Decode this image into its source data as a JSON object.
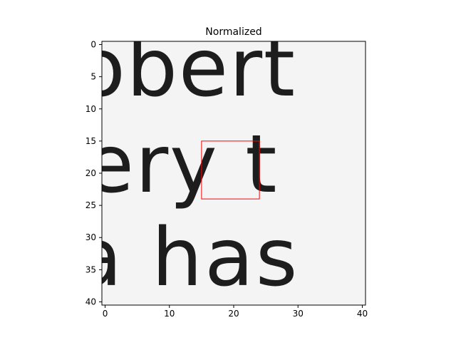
{
  "chart_data": {
    "type": "heatmap",
    "title": "Normalized",
    "colormap": "gray",
    "grid": false,
    "xlim": [
      -0.5,
      40.5
    ],
    "ylim": [
      40.5,
      -0.5
    ],
    "x_ticks": [
      0,
      10,
      20,
      30,
      40
    ],
    "y_ticks": [
      0,
      5,
      10,
      15,
      20,
      25,
      30,
      35,
      40
    ],
    "image_content_text": [
      {
        "text": "obert",
        "row": 4.5
      },
      {
        "text": "ery t",
        "row": 19.5
      },
      {
        "text": "a has",
        "row": 34
      }
    ],
    "highlight_box": {
      "x0": 15,
      "y0": 15,
      "x1": 24,
      "y1": 24,
      "color": "#ff0000"
    }
  }
}
